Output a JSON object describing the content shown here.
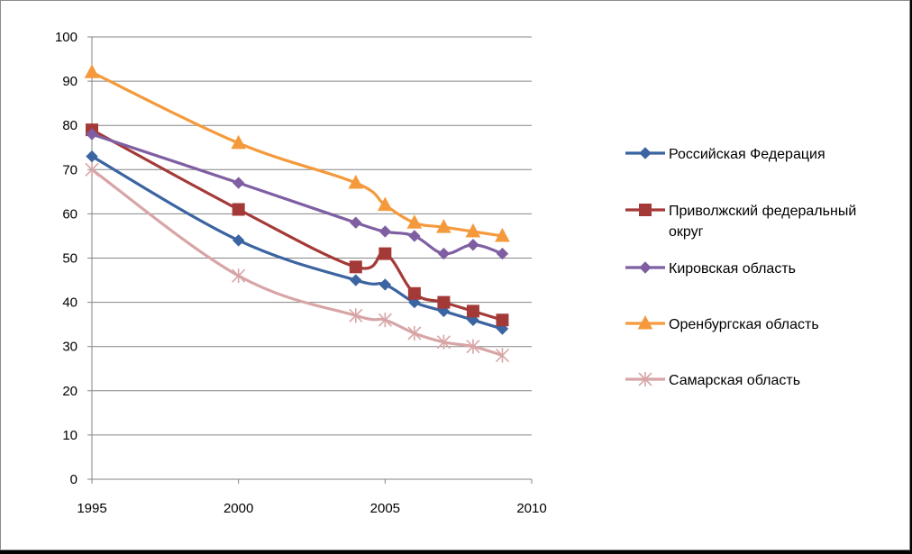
{
  "chart_data": {
    "type": "line",
    "title": "",
    "xlabel": "",
    "ylabel": "",
    "xlim": [
      1995,
      2010
    ],
    "ylim": [
      0,
      100
    ],
    "xticks": [
      1995,
      2000,
      2005,
      2010
    ],
    "yticks": [
      0,
      10,
      20,
      30,
      40,
      50,
      60,
      70,
      80,
      90,
      100
    ],
    "grid": "horizontal",
    "legend_position": "right",
    "x": [
      1995,
      2000,
      2004,
      2005,
      2006,
      2007,
      2008,
      2009
    ],
    "series": [
      {
        "name": "Российская Федерация",
        "color": "#3b64a1",
        "marker": "diamond",
        "values": [
          73,
          54,
          45,
          44,
          40,
          38,
          36,
          34
        ]
      },
      {
        "name": "Приволжский федеральный округ",
        "legend_lines": [
          "Приволжский федеральный",
          "округ"
        ],
        "color": "#a43a38",
        "marker": "square",
        "values": [
          79,
          61,
          48,
          51,
          42,
          40,
          38,
          36
        ]
      },
      {
        "name": "Кировская область",
        "color": "#7f5fa2",
        "marker": "diamond",
        "values": [
          78,
          67,
          58,
          56,
          55,
          51,
          53,
          51
        ]
      },
      {
        "name": "Оренбургская область",
        "color": "#f59a3c",
        "marker": "triangle",
        "values": [
          92,
          76,
          67,
          62,
          58,
          57,
          56,
          55
        ]
      },
      {
        "name": "Самарская область",
        "color": "#d8a5a7",
        "marker": "star",
        "values": [
          70,
          46,
          37,
          36,
          33,
          31,
          30,
          28
        ]
      }
    ]
  }
}
